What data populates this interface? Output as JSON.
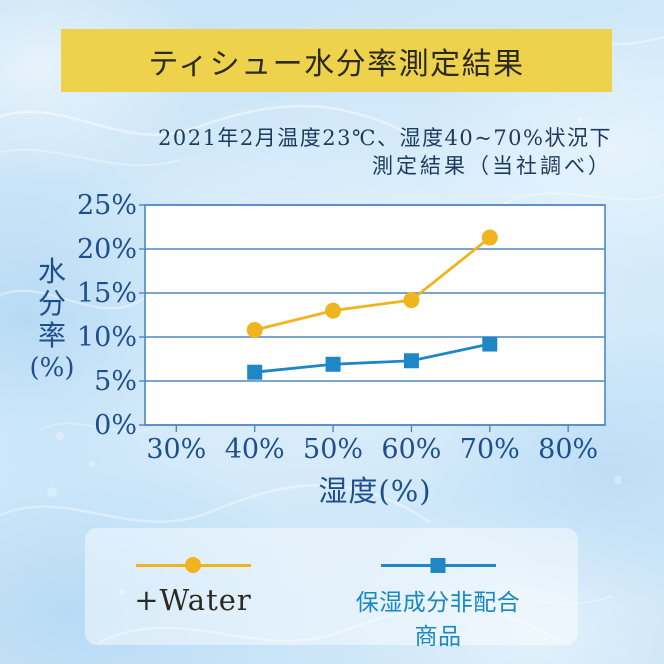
{
  "banner": {
    "title": "ティシュー水分率測定結果",
    "bg_color": "#eed24b",
    "text_color": "#2b2a20"
  },
  "subtitle": {
    "line1": "2021年2月温度23℃、湿度40~70%状況下",
    "line2": "測定結果（当社調べ）",
    "text_color": "#1c3a5c"
  },
  "chart_data": {
    "type": "line",
    "title": "ティシュー水分率測定結果",
    "xlabel": "湿度(%)",
    "ylabel": "水分率(%)",
    "ylabel_stack": [
      "水",
      "分",
      "率",
      "(%)"
    ],
    "x": [
      40,
      50,
      60,
      70
    ],
    "series": [
      {
        "name": "+Water",
        "color": "#f0b41e",
        "marker": "circle",
        "values": [
          10.8,
          13.0,
          14.2,
          21.3
        ]
      },
      {
        "name": "保湿成分非配合商品",
        "color": "#1e87c4",
        "marker": "square",
        "values": [
          6.0,
          6.9,
          7.3,
          9.2
        ]
      }
    ],
    "x_ticks": [
      30,
      40,
      50,
      60,
      70,
      80
    ],
    "y_ticks": [
      0,
      5,
      10,
      15,
      20,
      25
    ],
    "tick_suffix": "%",
    "xlim": [
      26,
      84.7
    ],
    "ylim": [
      0,
      25
    ],
    "grid": true,
    "legend_position": "bottom",
    "gridline_color": "#4d87c3",
    "tick_label_color": "#1f4e8c",
    "plot_bg": "#ffffff"
  },
  "legend": {
    "items": [
      {
        "label": "+Water",
        "color": "#f0b41e",
        "marker": "circle",
        "label_color": "#2b2a20"
      },
      {
        "label": "保湿成分非配合商品",
        "color": "#1e87c4",
        "marker": "square",
        "label_color": "#1787c5"
      }
    ]
  }
}
